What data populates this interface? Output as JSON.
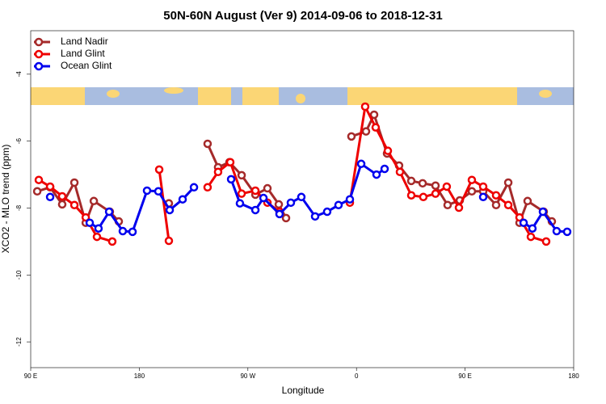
{
  "chart_data": {
    "type": "line",
    "title": "50N-60N August (Ver 9)   2014-09-06 to 2018-12-31",
    "x_label": "Longitude",
    "y_label": "XCO2 - MLO trend (ppm)",
    "xlim": [
      90,
      540
    ],
    "ylim": [
      -12.77,
      -2.7
    ],
    "xticks": [
      {
        "value": 90,
        "label": "90 E"
      },
      {
        "value": 180,
        "label": "180"
      },
      {
        "value": 270,
        "label": "90 W"
      },
      {
        "value": 360,
        "label": "0"
      },
      {
        "value": 450,
        "label": "90 E"
      },
      {
        "value": 540,
        "label": "180"
      }
    ],
    "yticks": [
      -4,
      -6,
      -8,
      -10,
      -12
    ],
    "legend": "top-left",
    "series": [
      {
        "name": "Land Nadir",
        "color": "#a52a2a",
        "x": [
          95.4,
          106.1,
          116.1,
          126.2,
          135.6,
          142.3,
          155.6,
          163.0,
          null,
          204.5,
          null,
          236.6,
          245.3,
          254.7,
          264.8,
          276.2,
          286.2,
          295.6,
          301.6,
          null,
          355.8,
          367.9,
          374.6,
          385.3,
          395.3,
          405.4,
          414.8,
          425.5,
          435.5,
          445.6,
          455.6,
          465.0,
          475.7,
          485.8,
          495.1,
          501.8,
          515.2,
          521.9
        ],
        "values": [
          -7.5,
          -7.38,
          -7.89,
          -7.24,
          -8.44,
          -7.79,
          -8.11,
          -8.4,
          null,
          -7.86,
          null,
          -6.08,
          -6.78,
          -6.63,
          -7.02,
          -7.6,
          -7.41,
          -7.89,
          -8.3,
          null,
          -5.86,
          -5.71,
          -5.21,
          -6.37,
          -6.73,
          -7.19,
          -7.26,
          -7.33,
          -7.91,
          -7.77,
          -7.5,
          -7.5,
          -7.91,
          -7.24,
          -8.44,
          -7.79,
          -8.11,
          -8.4
        ]
      },
      {
        "name": "Land Glint",
        "color": "#ee0000",
        "x": [
          96.7,
          106.1,
          116.1,
          126.2,
          135.6,
          144.9,
          157.6,
          null,
          196.5,
          204.5,
          null,
          236.6,
          245.3,
          255.4,
          264.8,
          276.2,
          286.2,
          296.2,
          null,
          354.5,
          367.2,
          375.9,
          386.0,
          396.0,
          405.4,
          415.4,
          425.5,
          434.8,
          444.9,
          455.6,
          465.0,
          475.7,
          485.8,
          495.1,
          504.5,
          517.2
        ],
        "values": [
          -7.16,
          -7.36,
          -7.65,
          -7.91,
          -8.28,
          -8.86,
          -9.0,
          null,
          -6.85,
          -8.98,
          null,
          -7.38,
          -6.92,
          -6.63,
          -7.57,
          -7.48,
          -7.84,
          -8.11,
          null,
          -7.84,
          -4.97,
          -5.59,
          -6.29,
          -6.92,
          -7.62,
          -7.67,
          -7.57,
          -7.36,
          -7.99,
          -7.16,
          -7.36,
          -7.62,
          -7.91,
          -8.28,
          -8.86,
          -9.0
        ]
      },
      {
        "name": "Ocean Glint",
        "color": "#0000ee",
        "x": [
          106.1,
          null,
          138.9,
          146.2,
          155.0,
          166.3,
          174.4,
          186.4,
          195.8,
          205.2,
          215.9,
          225.3,
          null,
          256.1,
          263.4,
          276.2,
          282.9,
          296.2,
          305.6,
          314.3,
          325.7,
          335.7,
          345.1,
          354.5,
          363.9,
          376.6,
          383.3,
          null,
          465.0,
          null,
          498.5,
          505.8,
          514.5,
          525.9,
          534.6
        ],
        "values": [
          -7.67,
          null,
          -8.44,
          -8.61,
          -8.11,
          -8.69,
          -8.71,
          -7.48,
          -7.5,
          -8.06,
          -7.74,
          -7.38,
          null,
          -7.14,
          -7.86,
          -8.06,
          -7.7,
          -8.18,
          -7.84,
          -7.67,
          -8.25,
          -8.11,
          -7.91,
          -7.74,
          -6.68,
          -7.0,
          -6.83,
          null,
          -7.67,
          null,
          -8.44,
          -8.61,
          -8.11,
          -8.69,
          -8.71
        ]
      }
    ]
  }
}
